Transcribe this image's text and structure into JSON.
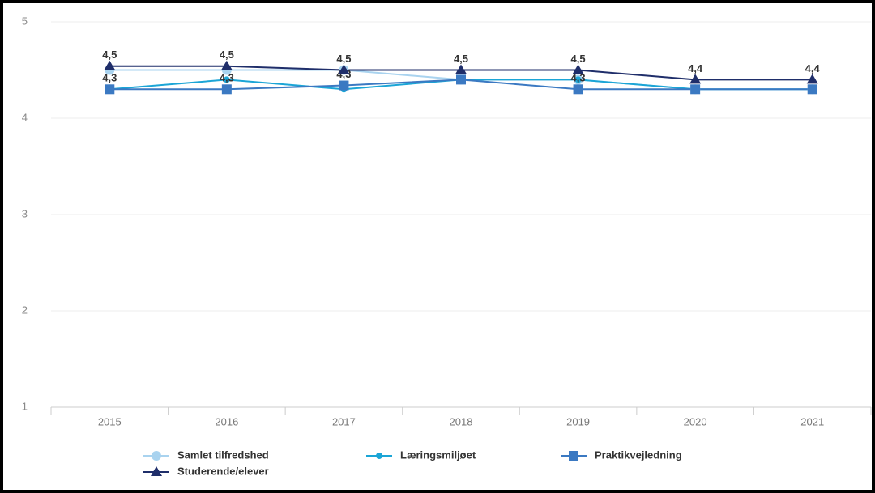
{
  "chart_data": {
    "type": "line",
    "categories": [
      "2015",
      "2016",
      "2017",
      "2018",
      "2019",
      "2020",
      "2021"
    ],
    "series": [
      {
        "name": "Samlet tilfredshed",
        "color": "#a9d3ef",
        "marker": "circle",
        "values": [
          4.5,
          4.5,
          4.5,
          4.4,
          4.4,
          4.3,
          4.3
        ]
      },
      {
        "name": "Læringsmiljøet",
        "color": "#1ba5d6",
        "marker": "dot",
        "values": [
          4.3,
          4.4,
          4.3,
          4.4,
          4.4,
          4.3,
          4.3
        ]
      },
      {
        "name": "Praktikvejledning",
        "color": "#3b79c2",
        "marker": "square",
        "values": [
          4.3,
          4.3,
          4.34,
          4.4,
          4.3,
          4.3,
          4.3
        ],
        "value_labels": [
          "4,3",
          "4,3",
          "4,3",
          null,
          "4,3",
          null,
          null
        ]
      },
      {
        "name": "Studerende/elever",
        "color": "#1f2e6a",
        "marker": "triangle",
        "values": [
          4.54,
          4.54,
          4.5,
          4.5,
          4.5,
          4.4,
          4.4
        ],
        "value_labels": [
          "4,5",
          "4,5",
          "4,5",
          "4,5",
          "4,5",
          "4,4",
          "4,4"
        ]
      }
    ],
    "ylim": [
      1,
      5
    ],
    "yticks": [
      1,
      2,
      3,
      4,
      5
    ],
    "grid": true
  }
}
